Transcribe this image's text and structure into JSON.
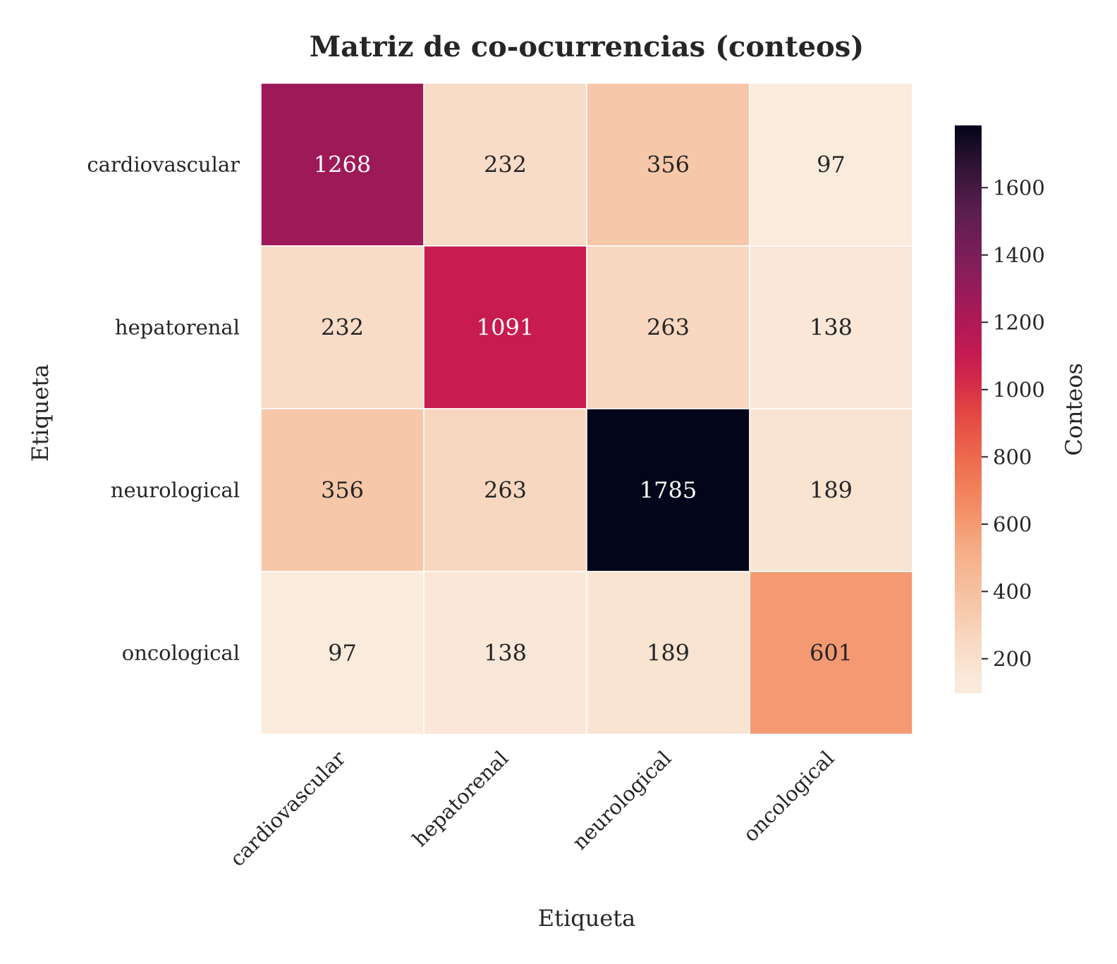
{
  "chart_data": {
    "type": "heatmap",
    "title": "Matriz de co-ocurrencias (conteos)",
    "xlabel": "Etiqueta",
    "ylabel": "Etiqueta",
    "x_categories": [
      "cardiovascular",
      "hepatorenal",
      "neurological",
      "oncological"
    ],
    "y_categories": [
      "cardiovascular",
      "hepatorenal",
      "neurological",
      "oncological"
    ],
    "values": [
      [
        1268,
        232,
        356,
        97
      ],
      [
        232,
        1091,
        263,
        138
      ],
      [
        356,
        263,
        1785,
        189
      ],
      [
        97,
        138,
        189,
        601
      ]
    ],
    "colorbar": {
      "label": "Conteos",
      "range": [
        97,
        1785
      ],
      "ticks": [
        200,
        400,
        600,
        800,
        1000,
        1200,
        1400,
        1600
      ],
      "colormap": "rocket_r"
    },
    "cell_border_color": "#ffffff",
    "dark_text_color": "#262626",
    "light_text_color": "#ffffff"
  }
}
